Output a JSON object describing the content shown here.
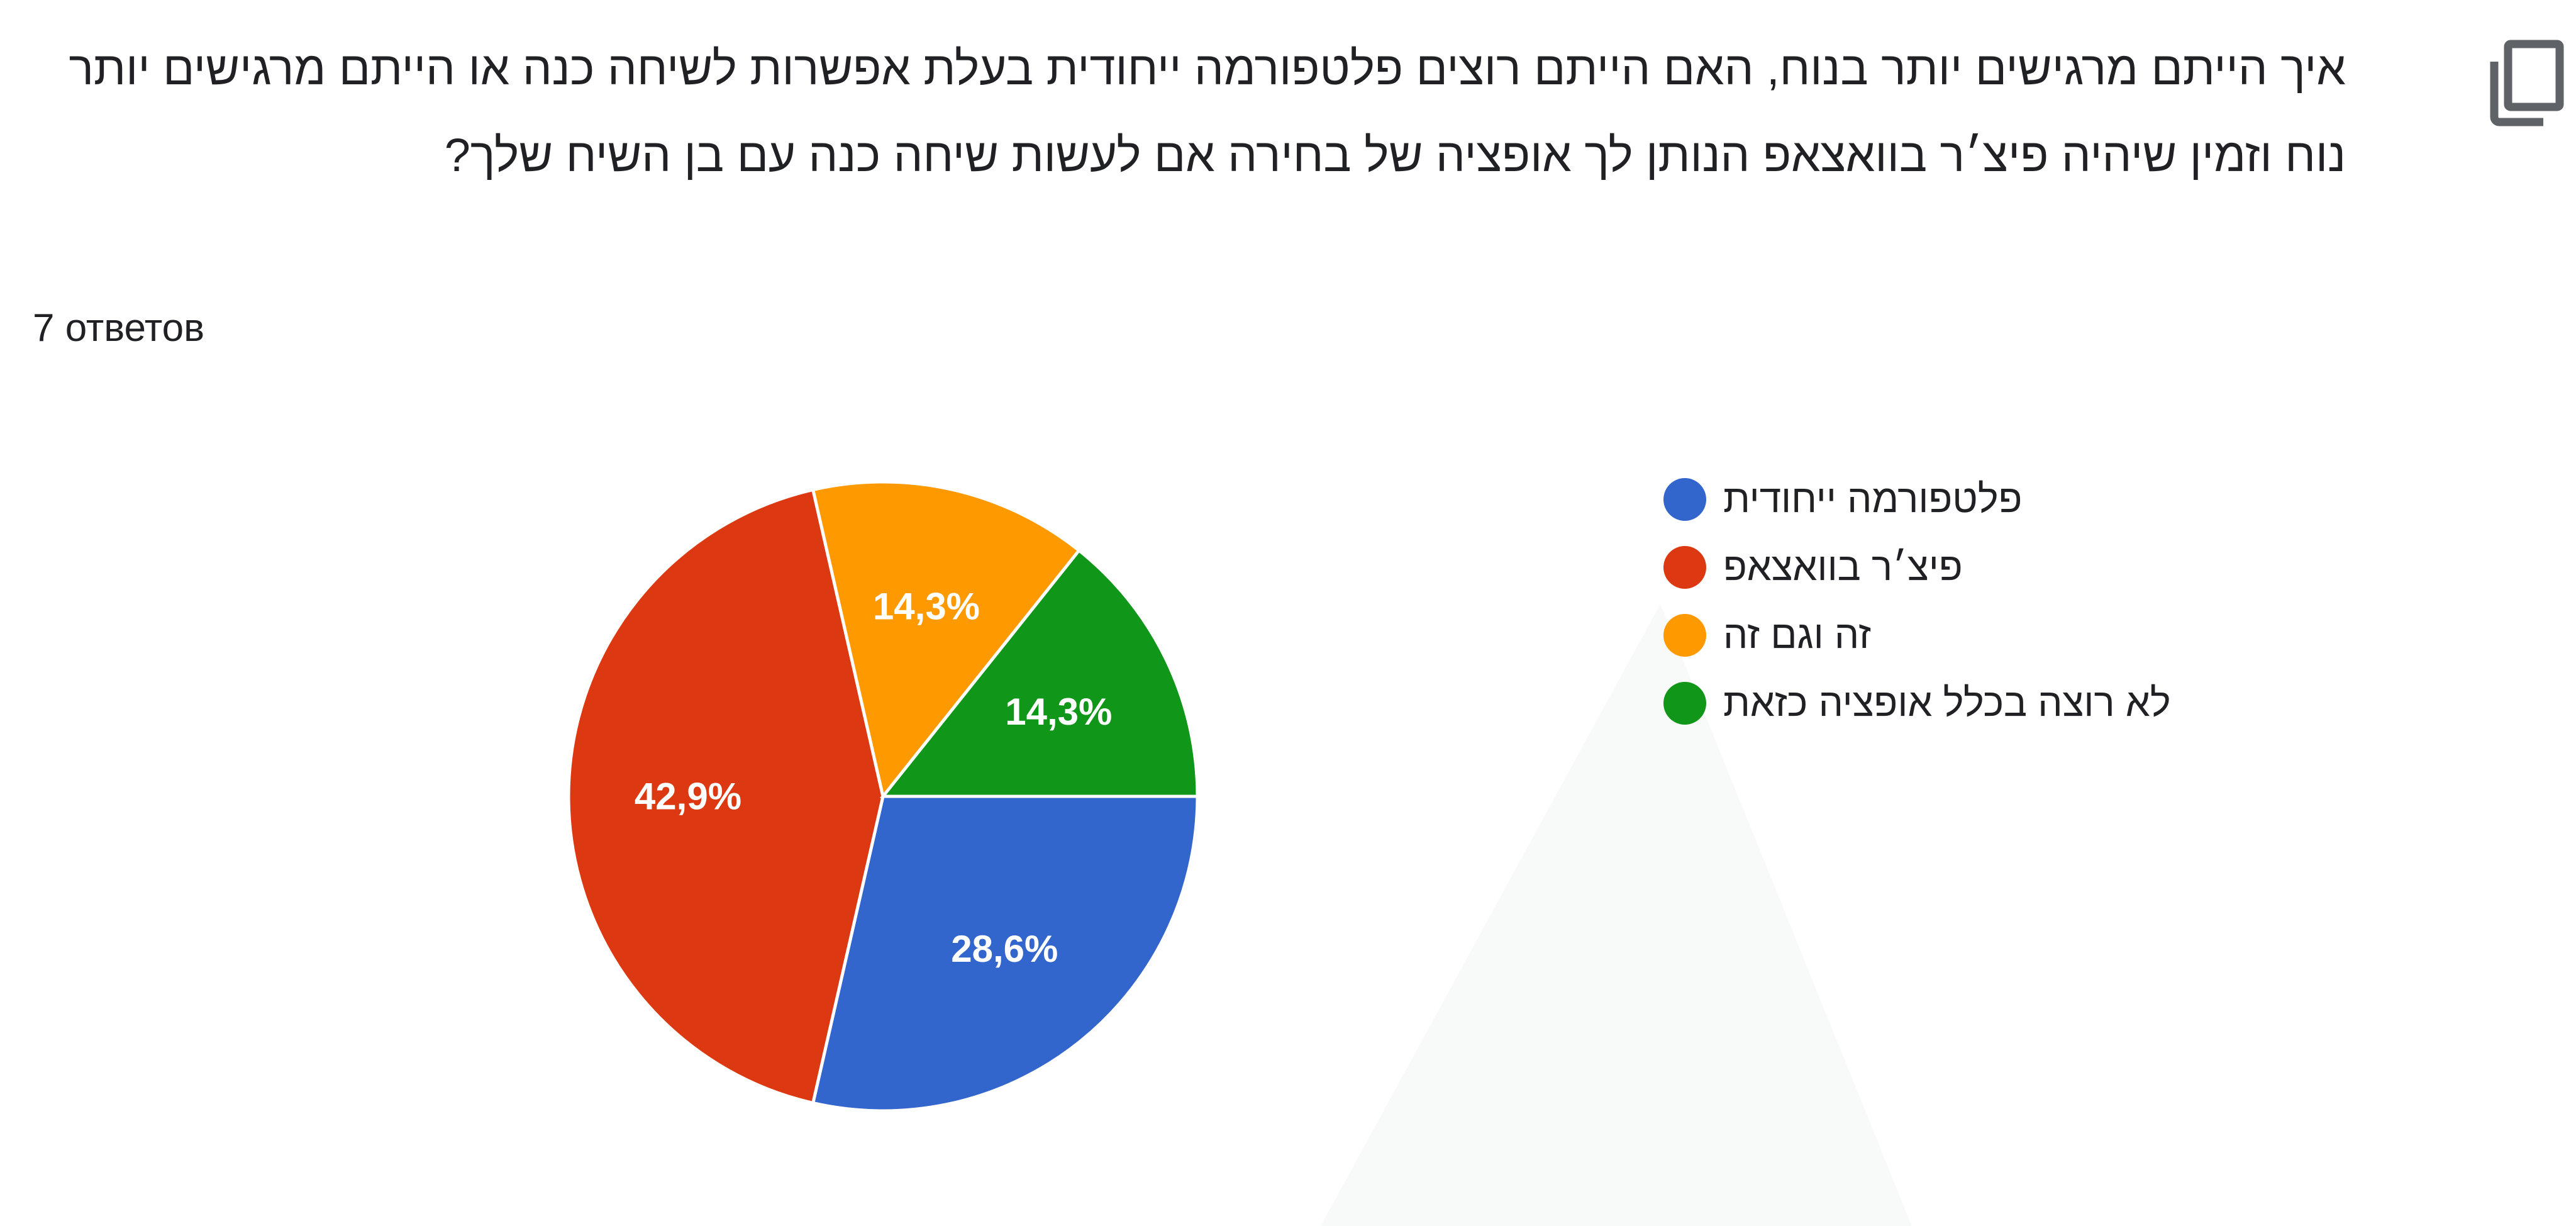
{
  "question": {
    "title": "איך הייתם מרגישים יותר בנוח, האם הייתם רוצים פלטפורמה ייחודית בעלת אפשרות לשיחה כנה או הייתם מרגישים יותר נוח וזמין שיהיה פיצ׳ר בוואצאפ הנותן לך אופציה של בחירה אם לעשות שיחה כנה עם בן השיח שלך?",
    "responses": "7 ответов"
  },
  "icons": {
    "copy": "copy-icon"
  },
  "chart_data": {
    "type": "pie",
    "categories": [
      "פלטפורמה ייחודית",
      "פיצ׳ר בוואצאפ",
      "זה וגם זה",
      "לא רוצה בכלל אופציה כזאת"
    ],
    "values": [
      28.6,
      42.9,
      14.3,
      14.3
    ],
    "counts": [
      2,
      3,
      1,
      1
    ],
    "labels": [
      "28,6%",
      "42,9%",
      "14,3%",
      "14,3%"
    ],
    "colors": [
      "#3366cc",
      "#dc3912",
      "#ff9900",
      "#109618"
    ],
    "legend_position": "right"
  }
}
